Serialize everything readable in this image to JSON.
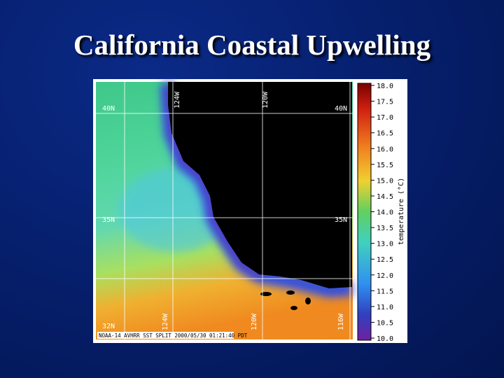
{
  "title": "California Coastal Upwelling",
  "map": {
    "lat_labels_left": [
      "40N",
      "35N",
      "32N"
    ],
    "lat_labels_right": [
      "40N",
      "35N"
    ],
    "lon_labels_top": [
      "124W",
      "120W"
    ],
    "lon_labels_bottom": [
      "124W",
      "120W",
      "116W"
    ],
    "caption": "NOAA-14 AVHRR SST SPLIT 2000/05/30 01:21:40 PDT"
  },
  "colorbar": {
    "label": "temperature (°C)",
    "ticks": [
      "18.0",
      "17.5",
      "17.0",
      "16.5",
      "16.0",
      "15.5",
      "15.0",
      "14.5",
      "14.0",
      "13.5",
      "13.0",
      "12.5",
      "12.0",
      "11.5",
      "11.0",
      "10.5",
      "10.0"
    ]
  }
}
